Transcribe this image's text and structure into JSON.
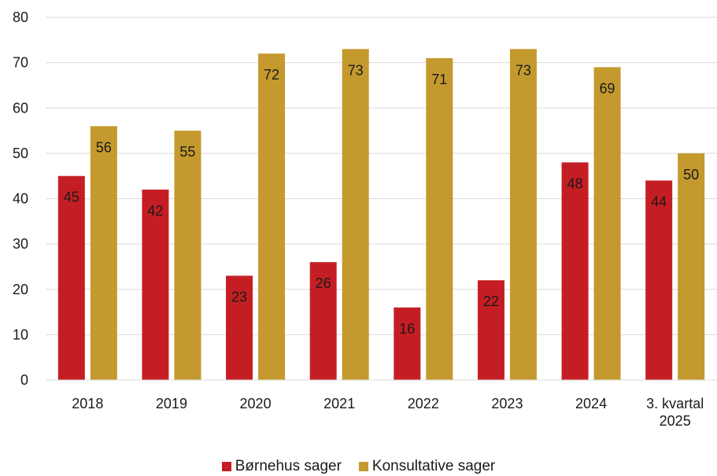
{
  "chart_data": {
    "type": "bar",
    "categories": [
      "2018",
      "2019",
      "2020",
      "2021",
      "2022",
      "2023",
      "2024",
      "3. kvartal\n2025"
    ],
    "series": [
      {
        "name": "Børnehus sager",
        "color": "#c41e24",
        "values": [
          45,
          42,
          23,
          26,
          16,
          22,
          48,
          44
        ]
      },
      {
        "name": "Konsultative sager",
        "color": "#c49a2e",
        "values": [
          56,
          55,
          72,
          73,
          71,
          73,
          69,
          50
        ]
      }
    ],
    "ylim": [
      0,
      80
    ],
    "yticks": [
      0,
      10,
      20,
      30,
      40,
      50,
      60,
      70,
      80
    ],
    "grid": true,
    "legend_position": "bottom",
    "data_labels": true
  }
}
